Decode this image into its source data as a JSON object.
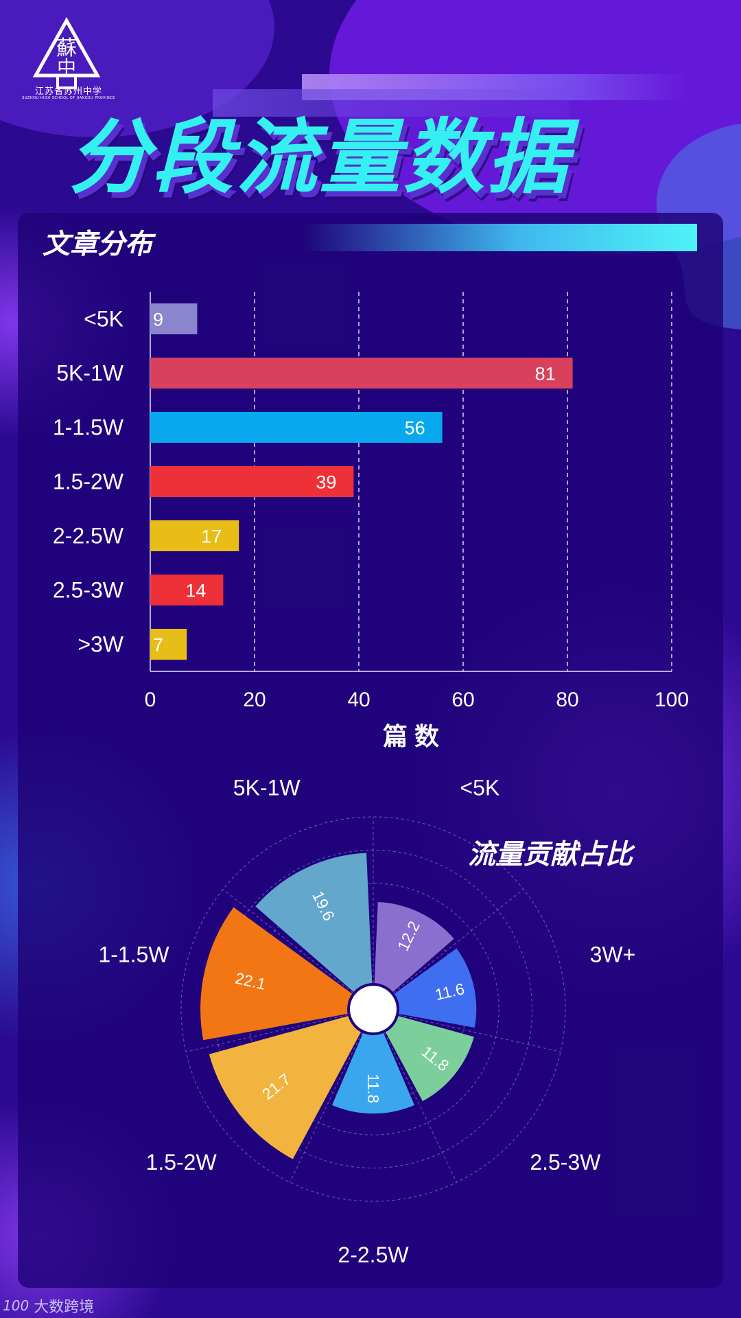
{
  "header": {
    "logo_char_top": "蘇",
    "logo_char_bottom": "中",
    "logo_subtitle": "江苏省苏州中学",
    "logo_subtitle_en": "SUZHOU HIGH SCHOOL OF JIANGSU PROVINCE",
    "title": "分段流量数据"
  },
  "sections": {
    "bar_title": "文章分布",
    "rose_title": "流量贡献占比"
  },
  "footer": {
    "brand_logo": "100",
    "brand_text": "大数跨境"
  },
  "colors": {
    "accent_cyan": "#35f0f0",
    "panel": "#1e0378"
  },
  "chart_data": [
    {
      "type": "bar",
      "orientation": "horizontal",
      "title": "文章分布",
      "xlabel": "篇 数",
      "ylabel": "",
      "categories": [
        "<5K",
        "5K-1W",
        "1-1.5W",
        "1.5-2W",
        "2-2.5W",
        "2.5-3W",
        ">3W"
      ],
      "values": [
        9,
        81,
        56,
        39,
        17,
        14,
        7
      ],
      "colors": [
        "#8a85cc",
        "#d9405c",
        "#08a8ee",
        "#ee3038",
        "#e8bd18",
        "#ee3038",
        "#e8bd18"
      ],
      "xlim": [
        0,
        100
      ],
      "xticks": [
        0,
        20,
        40,
        60,
        80,
        100
      ],
      "grid": "vertical dashed"
    },
    {
      "type": "pie",
      "subtype": "rose",
      "title": "流量贡献占比",
      "categories": [
        "<5K",
        "3W+",
        "2.5-3W",
        "2-2.5W",
        "1.5-2W",
        "1-1.5W",
        "5K-1W"
      ],
      "values": [
        12.2,
        11.6,
        11.8,
        11.8,
        21.7,
        22.1,
        19.6
      ],
      "colors": [
        "#8a6fcf",
        "#3f6ff0",
        "#7ccf9a",
        "#3aa6ee",
        "#f2b43e",
        "#f27614",
        "#63a7cc"
      ],
      "rlim": [
        0,
        25
      ]
    }
  ]
}
